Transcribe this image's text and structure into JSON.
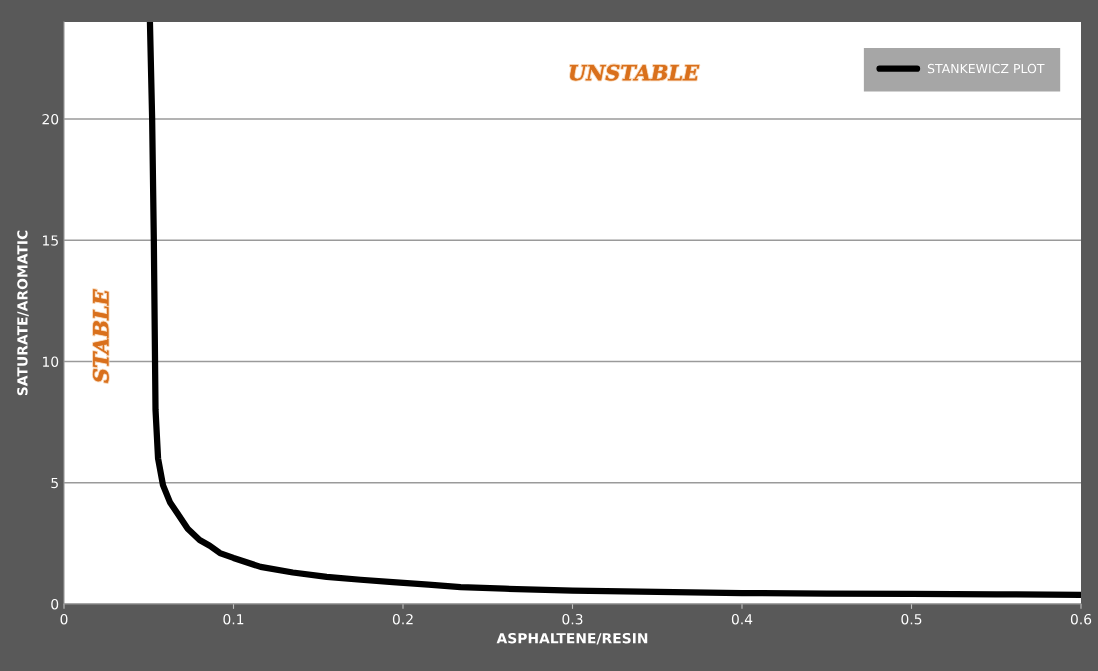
{
  "chart_data": {
    "type": "line",
    "xlabel": "ASPHALTENE/RESIN",
    "ylabel": "SATURATE/AROMATIC",
    "annotations": [
      "UNSTABLE",
      "STABLE"
    ],
    "series": [
      {
        "name": "STANKEWICZ PLOT",
        "color": "#000000",
        "x": [
          0.0507,
          0.052,
          0.053,
          0.054,
          0.0555,
          0.0584,
          0.0625,
          0.0667,
          0.073,
          0.08,
          0.086,
          0.092,
          0.1,
          0.116,
          0.135,
          0.155,
          0.175,
          0.194,
          0.215,
          0.234,
          0.26,
          0.3,
          0.35,
          0.4,
          0.45,
          0.5,
          0.55,
          0.6
        ],
        "values": [
          24,
          20,
          15,
          8,
          6,
          4.9,
          4.2,
          3.76,
          3.1,
          2.64,
          2.4,
          2.1,
          1.9,
          1.53,
          1.3,
          1.12,
          1.0,
          0.9,
          0.8,
          0.7,
          0.63,
          0.55,
          0.5,
          0.45,
          0.43,
          0.42,
          0.4,
          0.38
        ]
      }
    ],
    "xlim": [
      0,
      0.6
    ],
    "xticks": [
      0,
      0.1,
      0.2,
      0.3,
      0.4,
      0.5,
      0.6
    ],
    "ylim": [
      0,
      24
    ],
    "yticks": [
      0,
      5,
      10,
      15,
      20
    ],
    "grid": "y",
    "legend": "top right",
    "line_style": "solid",
    "marker": "none"
  }
}
